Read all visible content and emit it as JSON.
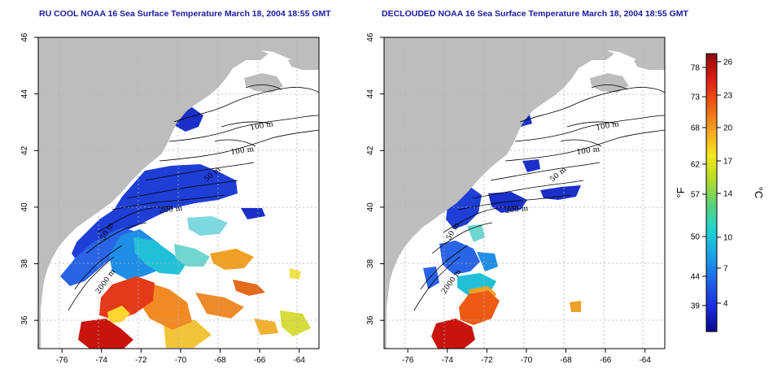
{
  "titles": {
    "left": "RU COOL NOAA 16 Sea Surface Temperature March 18, 2004 18:55 GMT",
    "right": "DECLOUDED NOAA 16 Sea Surface Temperature March 18, 2004 18:55 GMT"
  },
  "axes": {
    "x_ticks": [
      -76,
      -74,
      -72,
      -70,
      -68,
      -66,
      -64
    ],
    "y_ticks": [
      36,
      38,
      40,
      42,
      44,
      46
    ],
    "x_range": [
      -77.2,
      -63
    ],
    "y_range": [
      35,
      46
    ]
  },
  "contour_labels": [
    "100 m",
    "100 m",
    "50 m",
    "200 m",
    "50 m",
    "2000 m"
  ],
  "colorbar": {
    "fahrenheit_ticks": [
      39,
      44,
      50,
      57,
      62,
      68,
      73,
      78
    ],
    "celsius_ticks": [
      4,
      7,
      10,
      14,
      17,
      20,
      23,
      26
    ],
    "fahrenheit_unit": "°F",
    "celsius_unit": "°C",
    "colors": [
      "#08088c",
      "#1c2de0",
      "#1e64e6",
      "#19a2e6",
      "#1ed2d2",
      "#5ad27a",
      "#b4dc28",
      "#f5e61e",
      "#f5a01e",
      "#ee5a14",
      "#dc1e14",
      "#8c0a0a"
    ]
  },
  "colors": {
    "land": "#bdbdbd",
    "grid": "#b0b0b0"
  }
}
